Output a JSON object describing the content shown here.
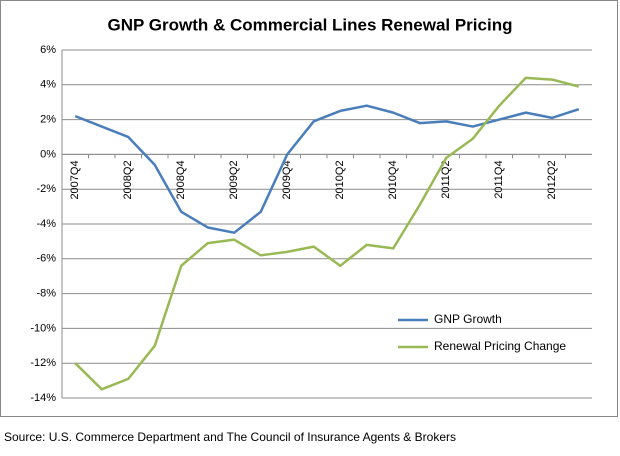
{
  "chart_data": {
    "type": "line",
    "title": "GNP Growth & Commercial Lines Renewal Pricing",
    "categories": [
      "2007Q4",
      null,
      "2008Q2",
      null,
      "2008Q4",
      null,
      "2009Q2",
      null,
      "2009Q4",
      null,
      "2010Q2",
      null,
      "2010Q4",
      null,
      "2011Q2",
      null,
      "2011Q4",
      null,
      "2012Q2",
      null
    ],
    "series": [
      {
        "name": "GNP Growth",
        "color": "#4a7ebb",
        "values": [
          2.2,
          1.6,
          1.0,
          -0.6,
          -3.3,
          -4.2,
          -4.5,
          -3.3,
          0.0,
          1.9,
          2.5,
          2.8,
          2.4,
          1.8,
          1.9,
          1.6,
          2.0,
          2.4,
          2.1,
          2.6
        ]
      },
      {
        "name": "Renewal Pricing Change",
        "color": "#98b954",
        "values": [
          -12.0,
          -13.5,
          -12.9,
          -11.0,
          -6.4,
          -5.1,
          -4.9,
          -5.8,
          -5.6,
          -5.3,
          -6.4,
          -5.2,
          -5.4,
          -2.9,
          -0.2,
          0.9,
          2.8,
          4.4,
          4.3,
          3.9
        ]
      }
    ],
    "ylim": [
      -14,
      6
    ],
    "yticks": [
      {
        "value": -14,
        "label": "-14%"
      },
      {
        "value": -12,
        "label": "-12%"
      },
      {
        "value": -10,
        "label": "-10%"
      },
      {
        "value": -8,
        "label": "-8%"
      },
      {
        "value": -6,
        "label": "-6%"
      },
      {
        "value": -4,
        "label": "-4%"
      },
      {
        "value": -2,
        "label": "-2%"
      },
      {
        "value": 0,
        "label": "0%"
      },
      {
        "value": 2,
        "label": "2%"
      },
      {
        "value": 4,
        "label": "4%"
      },
      {
        "value": 6,
        "label": "6%"
      }
    ],
    "grid": true,
    "legend": "lower-right",
    "source": "Source: U.S. Commerce Department and The Council of Insurance Agents & Brokers"
  }
}
